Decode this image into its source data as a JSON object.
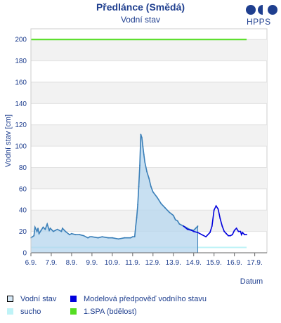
{
  "header": {
    "title": "Předlánce (Smědá)",
    "subtitle": "Vodní stav",
    "logo_text": "HPPS"
  },
  "legend": {
    "items": [
      {
        "label": "Vodní stav",
        "color": "#d6e8f6",
        "border": "#000000"
      },
      {
        "label": "Modelová předpověď vodního stavu",
        "color": "#0000dd",
        "border": "#0000dd"
      },
      {
        "label": "sucho",
        "color": "#bff3f7",
        "border": "#bff3f7"
      },
      {
        "label": "1.SPA (bdělost)",
        "color": "#55dd22",
        "border": "#55dd22"
      }
    ]
  },
  "chart_data": {
    "type": "line",
    "title": "Předlánce (Smědá)",
    "subtitle": "Vodní stav",
    "xlabel": "Datum",
    "ylabel": "Vodní stav [cm]",
    "ylim": [
      0,
      210
    ],
    "yticks": [
      0,
      20,
      40,
      60,
      80,
      100,
      120,
      140,
      160,
      180,
      200
    ],
    "xlim": [
      6,
      17.6
    ],
    "xticks": [
      6,
      7,
      8,
      9,
      10,
      11,
      12,
      13,
      14,
      15,
      16,
      17
    ],
    "xticklabels": [
      "6.9.",
      "7.9.",
      "8.9.",
      "9.9.",
      "10.9.",
      "11.9.",
      "12.9.",
      "13.9.",
      "14.9.",
      "15.9.",
      "16.9.",
      "17.9."
    ],
    "grid": "horizontal bands",
    "series": [
      {
        "name": "Vodní stav",
        "color": "#3a7fb8",
        "fill": "#b5d6ee",
        "x": [
          6.0,
          6.15,
          6.2,
          6.3,
          6.35,
          6.4,
          6.5,
          6.6,
          6.7,
          6.8,
          6.9,
          6.95,
          7.0,
          7.1,
          7.2,
          7.3,
          7.5,
          7.55,
          7.7,
          7.9,
          8.0,
          8.2,
          8.4,
          8.6,
          8.8,
          8.9,
          9.0,
          9.3,
          9.5,
          9.8,
          10.0,
          10.3,
          10.6,
          10.9,
          11.0,
          11.1,
          11.15,
          11.2,
          11.25,
          11.3,
          11.35,
          11.4,
          11.45,
          11.5,
          11.55,
          11.6,
          11.7,
          11.8,
          11.9,
          12.0,
          12.2,
          12.4,
          12.6,
          12.8,
          13.0,
          13.1,
          13.2,
          13.3,
          13.5,
          13.6,
          13.8,
          14.0,
          14.1,
          14.2
        ],
        "y": [
          14,
          16,
          24,
          20,
          23,
          18,
          21,
          24,
          22,
          27,
          21,
          23,
          22,
          20,
          21,
          22,
          20,
          23,
          20,
          17,
          18,
          17,
          17,
          16,
          14,
          15,
          15,
          14,
          15,
          14,
          14,
          13,
          14,
          14,
          15,
          15,
          25,
          33,
          45,
          62,
          82,
          111,
          108,
          100,
          92,
          85,
          76,
          70,
          62,
          57,
          52,
          46,
          42,
          38,
          35,
          31,
          30,
          27,
          25,
          24,
          22,
          21,
          23,
          25
        ]
      },
      {
        "name": "Modelová předpověď vodního stavu",
        "color": "#0000dd",
        "x": [
          13.5,
          13.7,
          13.9,
          14.0,
          14.2,
          14.4,
          14.6,
          14.8,
          14.9,
          15.0,
          15.1,
          15.2,
          15.3,
          15.4,
          15.5,
          15.6,
          15.7,
          15.8,
          15.9,
          16.0,
          16.1,
          16.2,
          16.3,
          16.35,
          16.4,
          16.5,
          16.6
        ],
        "y": [
          25,
          22,
          21,
          20,
          19,
          17,
          15,
          19,
          25,
          40,
          44,
          41,
          32,
          25,
          20,
          18,
          16,
          16,
          17,
          21,
          23,
          20,
          20,
          17,
          19,
          17,
          17
        ]
      },
      {
        "name": "sucho",
        "color": "#bff3f7",
        "x": [
          6.0,
          16.6
        ],
        "y": [
          5,
          5
        ]
      },
      {
        "name": "1.SPA (bdělost)",
        "color": "#55dd22",
        "x": [
          6.0,
          16.6
        ],
        "y": [
          200,
          200
        ]
      }
    ]
  }
}
